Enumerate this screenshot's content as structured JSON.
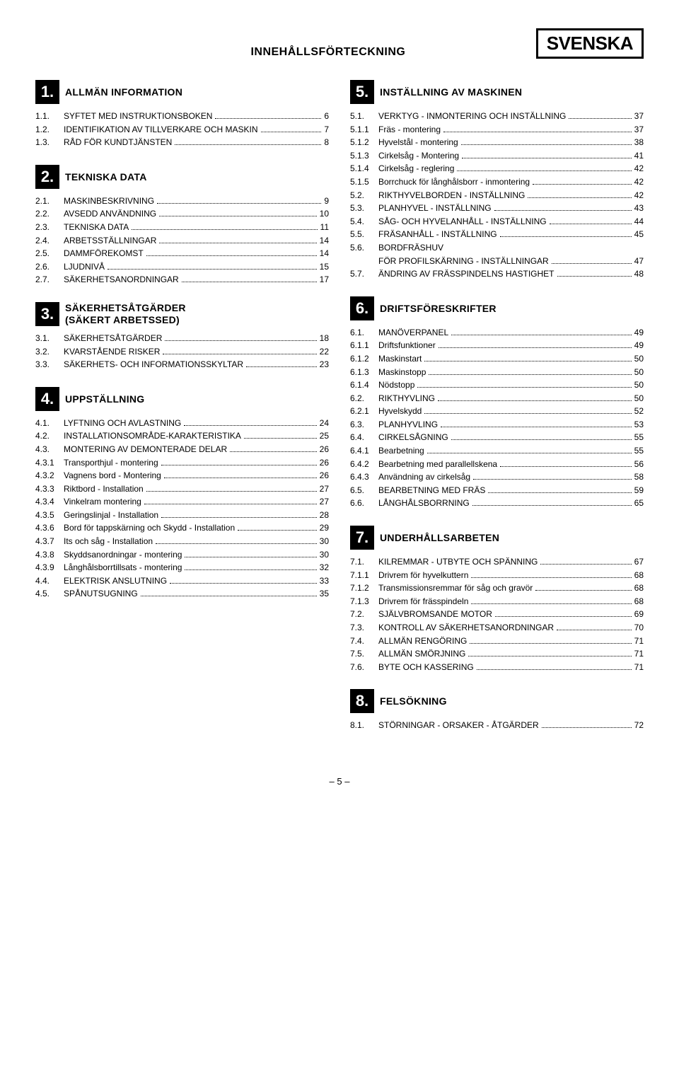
{
  "header": {
    "title": "INNEHÅLLSFÖRTECKNING",
    "lang": "SVENSKA"
  },
  "footer": {
    "page": "– 5 –"
  },
  "sections": {
    "s1": {
      "num": "1.",
      "title": "ALLMÄN INFORMATION",
      "items": [
        {
          "n": "1.1.",
          "t": "SYFTET MED INSTRUKTIONSBOKEN",
          "p": "6"
        },
        {
          "n": "1.2.",
          "t": "IDENTIFIKATION AV TILLVERKARE OCH MASKIN",
          "p": "7"
        },
        {
          "n": "1.3.",
          "t": "RÅD FÖR KUNDTJÄNSTEN",
          "p": "8"
        }
      ]
    },
    "s2": {
      "num": "2.",
      "title": "TEKNISKA DATA",
      "items": [
        {
          "n": "2.1.",
          "t": "MASKINBESKRIVNING",
          "p": "9"
        },
        {
          "n": "2.2.",
          "t": "AVSEDD ANVÄNDNING",
          "p": "10"
        },
        {
          "n": "2.3.",
          "t": "TEKNISKA DATA",
          "p": "11"
        },
        {
          "n": "2.4.",
          "t": "ARBETSSTÄLLNINGAR",
          "p": "14"
        },
        {
          "n": "2.5.",
          "t": "DAMMFÖREKOMST",
          "p": "14"
        },
        {
          "n": "2.6.",
          "t": "LJUDNIVÅ",
          "p": "15"
        },
        {
          "n": "2.7.",
          "t": "SÄKERHETSANORDNINGAR",
          "p": "17"
        }
      ]
    },
    "s3": {
      "num": "3.",
      "title": "SÄKERHETSÅTGÄRDER",
      "title2": "(SÄKERT ARBETSSED)",
      "items": [
        {
          "n": "3.1.",
          "t": "SÄKERHETSÅTGÄRDER",
          "p": "18"
        },
        {
          "n": "3.2.",
          "t": "KVARSTÅENDE RISKER",
          "p": "22"
        },
        {
          "n": "3.3.",
          "t": "SÄKERHETS- OCH INFORMATIONSSKYLTAR",
          "p": "23"
        }
      ]
    },
    "s4": {
      "num": "4.",
      "title": "UPPSTÄLLNING",
      "items": [
        {
          "n": "4.1.",
          "t": "LYFTNING OCH AVLASTNING",
          "p": "24"
        },
        {
          "n": "4.2.",
          "t": "INSTALLATIONSOMRÅDE-KARAKTERISTIKA",
          "p": "25"
        },
        {
          "n": "4.3.",
          "t": "MONTERING AV DEMONTERADE DELAR",
          "p": "26"
        },
        {
          "n": "4.3.1",
          "t": "Transporthjul - montering",
          "p": "26"
        },
        {
          "n": "4.3.2",
          "t": "Vagnens bord - Montering",
          "p": "26"
        },
        {
          "n": "4.3.3",
          "t": "Riktbord - Installation",
          "p": "27"
        },
        {
          "n": "4.3.4",
          "t": "Vinkelram montering",
          "p": "27"
        },
        {
          "n": "4.3.5",
          "t": "Geringslinjal - Installation",
          "p": "28"
        },
        {
          "n": "4.3.6",
          "t": "Bord för tappskärning och Skydd - Installation",
          "p": "29"
        },
        {
          "n": "4.3.7",
          "t": "Its och såg - Installation",
          "p": "30"
        },
        {
          "n": "4.3.8",
          "t": "Skyddsanordningar - montering",
          "p": "30"
        },
        {
          "n": "4.3.9",
          "t": "Långhålsborrtillsats - montering",
          "p": "32"
        },
        {
          "n": "4.4.",
          "t": "ELEKTRISK ANSLUTNING",
          "p": "33"
        },
        {
          "n": "4.5.",
          "t": "SPÅNUTSUGNING",
          "p": "35"
        }
      ]
    },
    "s5": {
      "num": "5.",
      "title": "INSTÄLLNING AV MASKINEN",
      "items": [
        {
          "n": "5.1.",
          "t": "VERKTYG - INMONTERING OCH INSTÄLLNING",
          "p": "37"
        },
        {
          "n": "5.1.1",
          "t": "Fräs - montering",
          "p": "37"
        },
        {
          "n": "5.1.2",
          "t": "Hyvelstål - montering",
          "p": "38"
        },
        {
          "n": "5.1.3",
          "t": "Cirkelsåg - Montering",
          "p": "41"
        },
        {
          "n": "5.1.4",
          "t": "Cirkelsåg - reglering",
          "p": "42"
        },
        {
          "n": "5.1.5",
          "t": "Borrchuck för långhålsborr - inmontering",
          "p": "42"
        },
        {
          "n": "5.2.",
          "t": "RIKTHYVELBORDEN - INSTÄLLNING",
          "p": "42"
        },
        {
          "n": "5.3.",
          "t": "PLANHYVEL - INSTÄLLNING",
          "p": "43"
        },
        {
          "n": "5.4.",
          "t": "SÅG- OCH HYVELANHÅLL - INSTÄLLNING",
          "p": "44"
        },
        {
          "n": "5.5.",
          "t": "FRÄSANHÅLL - INSTÄLLNING",
          "p": "45"
        },
        {
          "n": "5.6.",
          "t": "BORDFRÄSHUV",
          "cont": "FÖR PROFILSKÄRNING - INSTÄLLNINGAR",
          "p": "47"
        },
        {
          "n": "5.7.",
          "t": "ÄNDRING AV FRÄSSPINDELNS HASTIGHET",
          "p": "48"
        }
      ]
    },
    "s6": {
      "num": "6.",
      "title": "DRIFTSFÖRESKRIFTER",
      "items": [
        {
          "n": "6.1.",
          "t": "MANÖVERPANEL",
          "p": "49"
        },
        {
          "n": "6.1.1",
          "t": "Driftsfunktioner",
          "p": "49"
        },
        {
          "n": "6.1.2",
          "t": "Maskinstart",
          "p": "50"
        },
        {
          "n": "6.1.3",
          "t": "Maskinstopp",
          "p": "50"
        },
        {
          "n": "6.1.4",
          "t": "Nödstopp",
          "p": "50"
        },
        {
          "n": "6.2.",
          "t": "RIKTHYVLING",
          "p": "50"
        },
        {
          "n": "6.2.1",
          "t": "Hyvelskydd",
          "p": "52"
        },
        {
          "n": "6.3.",
          "t": "PLANHYVLING",
          "p": "53"
        },
        {
          "n": "6.4.",
          "t": "CIRKELSÅGNING",
          "p": "55"
        },
        {
          "n": "6.4.1",
          "t": "Bearbetning",
          "p": "55"
        },
        {
          "n": "6.4.2",
          "t": "Bearbetning med parallellskena",
          "p": "56"
        },
        {
          "n": "6.4.3",
          "t": "Användning av cirkelsåg",
          "p": "58"
        },
        {
          "n": "6.5.",
          "t": "BEARBETNING MED FRÄS",
          "p": "59"
        },
        {
          "n": "6.6.",
          "t": "LÅNGHÅLSBORRNING",
          "p": "65"
        }
      ]
    },
    "s7": {
      "num": "7.",
      "title": "UNDERHÅLLSARBETEN",
      "items": [
        {
          "n": "7.1.",
          "t": "KILREMMAR - UTBYTE OCH SPÄNNING",
          "p": "67"
        },
        {
          "n": "7.1.1",
          "t": "Drivrem för hyvelkuttern",
          "p": "68"
        },
        {
          "n": "7.1.2",
          "t": "Transmissionsremmar för såg och gravör",
          "p": "68"
        },
        {
          "n": "7.1.3",
          "t": "Drivrem för frässpindeln",
          "p": "68"
        },
        {
          "n": "7.2.",
          "t": "SJÄLVBROMSANDE MOTOR",
          "p": "69"
        },
        {
          "n": "7.3.",
          "t": "KONTROLL AV SÄKERHETSANORDNINGAR",
          "p": "70"
        },
        {
          "n": "7.4.",
          "t": "ALLMÄN RENGÖRING",
          "p": "71"
        },
        {
          "n": "7.5.",
          "t": "ALLMÄN SMÖRJNING",
          "p": "71"
        },
        {
          "n": "7.6.",
          "t": "BYTE OCH KASSERING",
          "p": "71"
        }
      ]
    },
    "s8": {
      "num": "8.",
      "title": "FELSÖKNING",
      "items": [
        {
          "n": "8.1.",
          "t": "STÖRNINGAR - ORSAKER - ÅTGÄRDER",
          "p": "72"
        }
      ]
    }
  }
}
